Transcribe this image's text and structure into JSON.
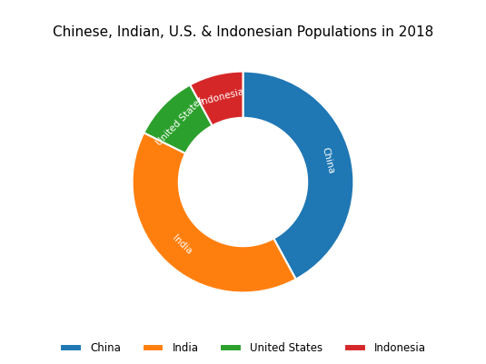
{
  "chart_data": {
    "type": "donut",
    "title": "Chinese, Indian, U.S. & Indonesian Populations in 2018",
    "categories": [
      "China",
      "India",
      "United States",
      "Indonesia"
    ],
    "values": [
      1415045928,
      1354051854,
      326706743,
      266794980
    ],
    "legend": "lower center"
  }
}
